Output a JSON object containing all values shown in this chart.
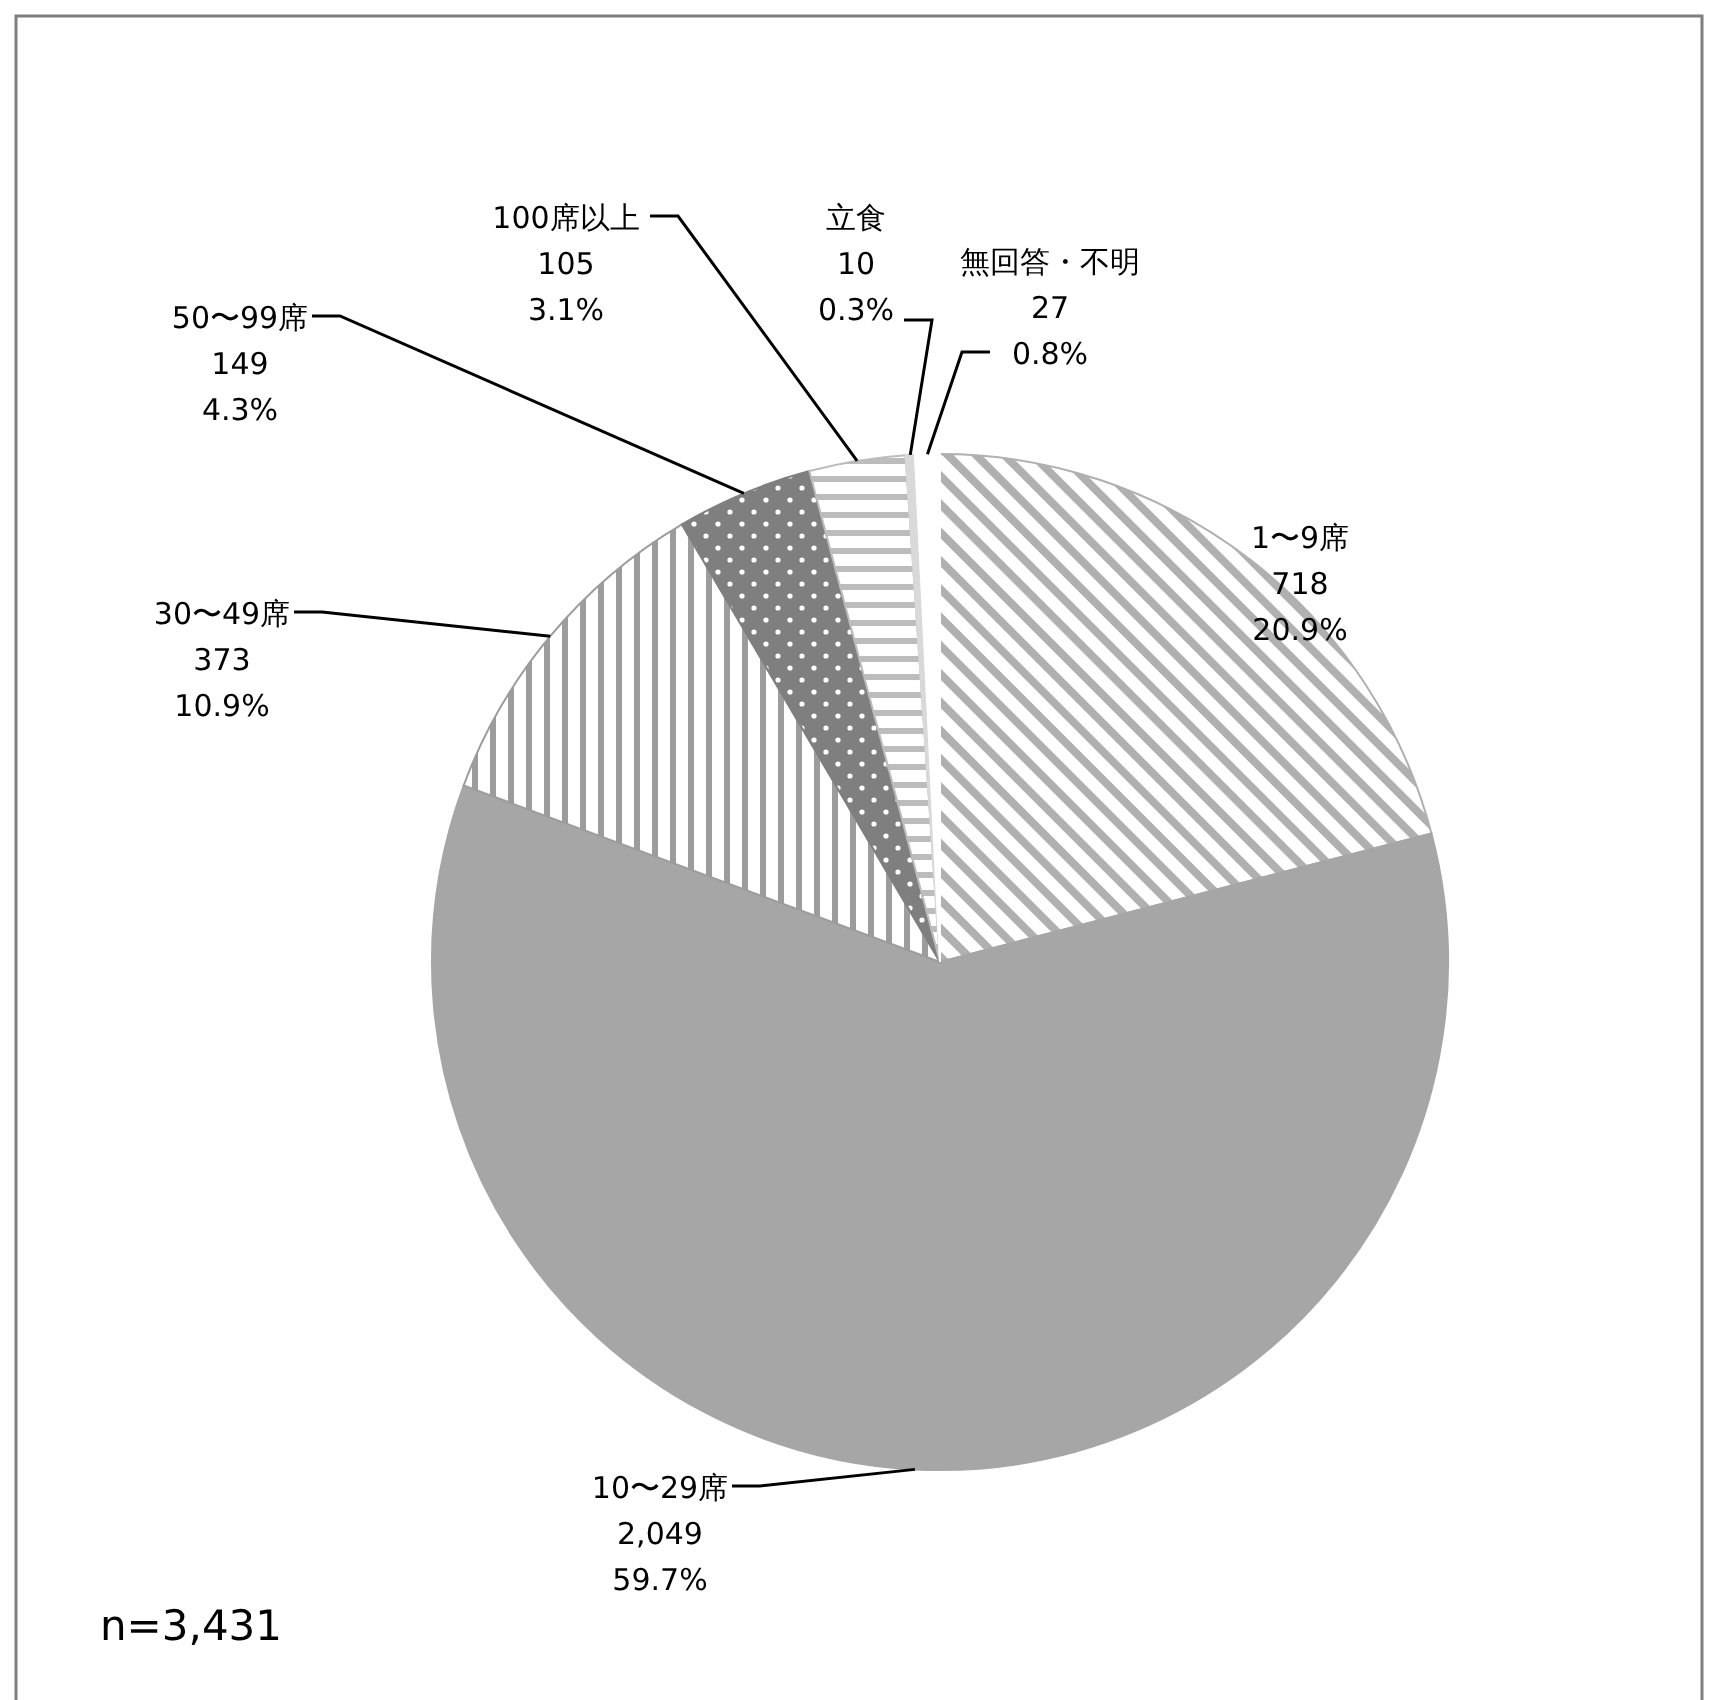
{
  "chart_data": {
    "type": "pie",
    "categories": [
      "1〜9席",
      "10〜29席",
      "30〜49席",
      "50〜99席",
      "100席以上",
      "立食",
      "無回答・不明"
    ],
    "values": [
      718,
      2049,
      373,
      149,
      105,
      10,
      27
    ],
    "value_labels": [
      "718\n20.9%",
      "2,049\n59.7%",
      "373\n10.9%",
      "149\n4.3%",
      "105\n3.1%",
      "10\n0.3%",
      "27\n0.8%"
    ],
    "colors": [
      "#b0b0b0",
      "#a6a6a6",
      "#9c9c9c",
      "#7f7f7f",
      "#bcbcbc",
      "#d9d9d9",
      "#ffffff"
    ],
    "annotations": [
      "n=3,431"
    ]
  }
}
